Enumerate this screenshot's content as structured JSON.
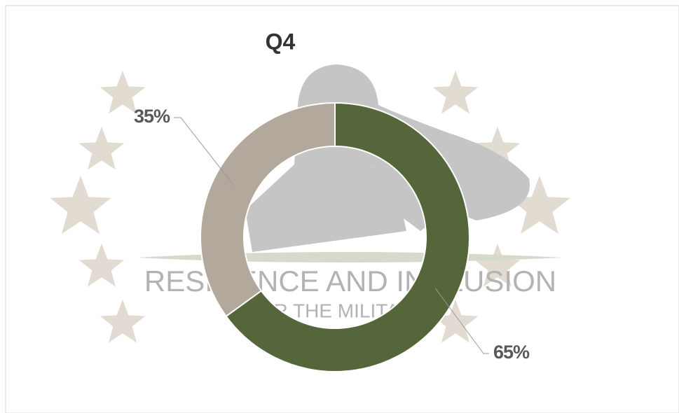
{
  "chart_data": {
    "type": "pie",
    "title": "Q4",
    "categories": [
      null,
      null
    ],
    "values": [
      65,
      35
    ],
    "value_labels": [
      "65%",
      "35%"
    ],
    "colors": [
      "#55663a",
      "#b2a89c"
    ],
    "watermark": [
      "RESILIENCE AND INCLUSION",
      "FOR THE MILITARY"
    ]
  }
}
